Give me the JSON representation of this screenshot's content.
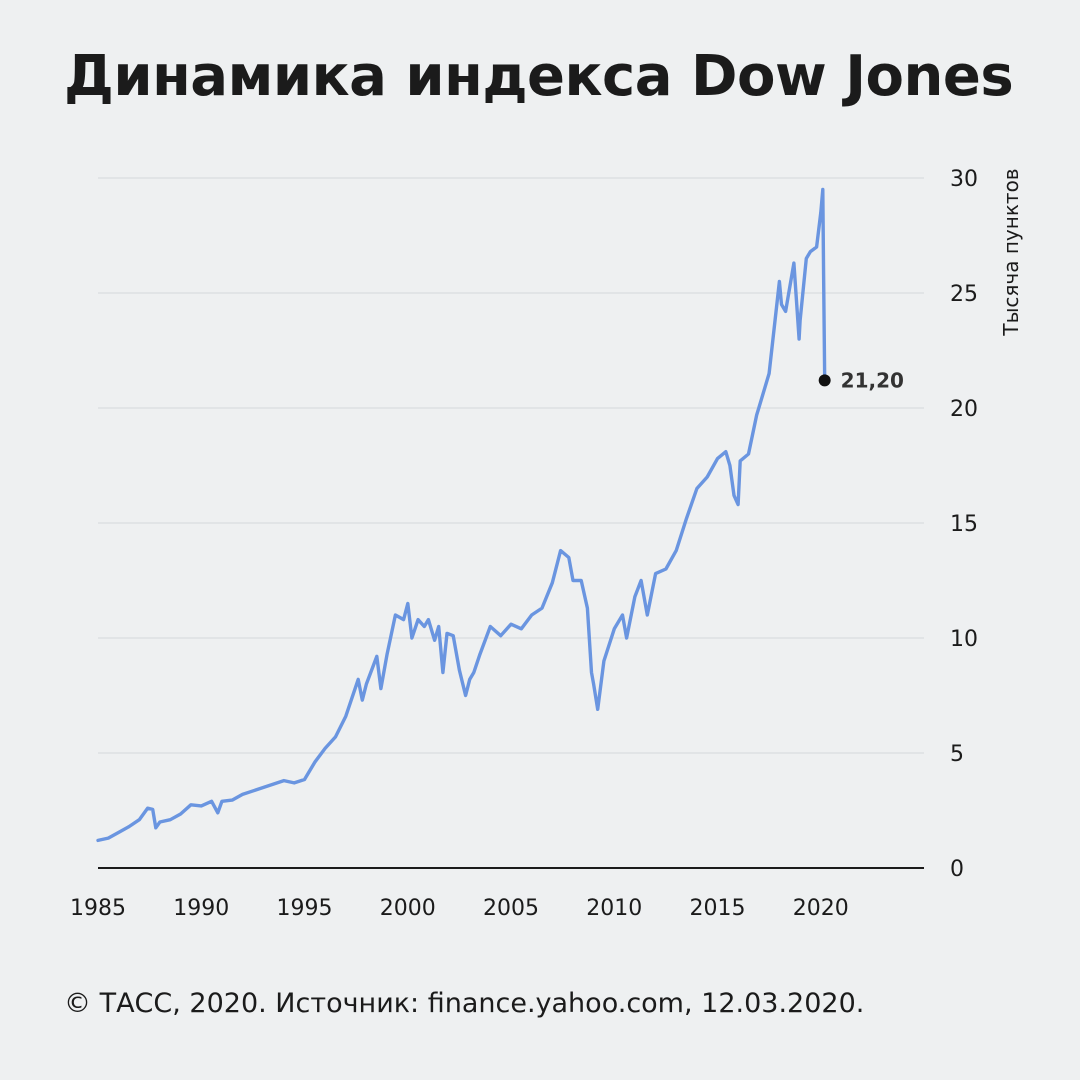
{
  "title": "Динамика индекса Dow Jones",
  "footer": "© ТАСС, 2020. Источник: finance.yahoo.com, 12.03.2020.",
  "colors": {
    "line": "#6a95e0",
    "grid": "#d4d7da",
    "axis": "#1b1b1b",
    "background": "#eef0f1"
  },
  "chart_data": {
    "type": "line",
    "title": "Динамика индекса Dow Jones",
    "xlabel": "",
    "ylabel": "Тысяча пунктов",
    "xlim": [
      1985,
      2025
    ],
    "ylim": [
      0,
      30
    ],
    "x_ticks": [
      "1985",
      "1990",
      "1995",
      "2000",
      "2005",
      "2010",
      "2015",
      "2020"
    ],
    "y_ticks": [
      "0",
      "5",
      "10",
      "15",
      "20",
      "25",
      "30"
    ],
    "y_axis_side": "right",
    "grid": true,
    "last_value_label": "21,20",
    "last_value": 21.2,
    "series": [
      {
        "x": [
          1985.0,
          1985.5,
          1986.0,
          1986.5,
          1987.0,
          1987.4,
          1987.65,
          1987.8,
          1988.0,
          1988.5,
          1989.0,
          1989.5,
          1990.0,
          1990.5,
          1990.8,
          1991.0,
          1991.5,
          1992.0,
          1993.0,
          1994.0,
          1994.5,
          1995.0,
          1995.5,
          1996.0,
          1996.5,
          1997.0,
          1997.6,
          1997.8,
          1998.0,
          1998.5,
          1998.7,
          1999.0,
          1999.4,
          1999.8,
          2000.0,
          2000.2,
          2000.5,
          2000.8,
          2001.0,
          2001.3,
          2001.5,
          2001.7,
          2001.9,
          2002.2,
          2002.5,
          2002.8,
          2003.0,
          2003.2,
          2003.5,
          2004.0,
          2004.5,
          2005.0,
          2005.5,
          2006.0,
          2006.5,
          2007.0,
          2007.4,
          2007.8,
          2008.0,
          2008.4,
          2008.7,
          2008.9,
          2009.0,
          2009.2,
          2009.5,
          2010.0,
          2010.4,
          2010.6,
          2011.0,
          2011.3,
          2011.6,
          2012.0,
          2012.5,
          2013.0,
          2013.5,
          2014.0,
          2014.5,
          2015.0,
          2015.4,
          2015.6,
          2015.8,
          2016.0,
          2016.1,
          2016.5,
          2016.9,
          2017.0,
          2017.5,
          2018.0,
          2018.1,
          2018.3,
          2018.7,
          2018.95,
          2019.0,
          2019.3,
          2019.5,
          2019.8,
          2020.0,
          2020.1,
          2020.14,
          2020.19
        ],
        "values": [
          1.2,
          1.3,
          1.55,
          1.8,
          2.1,
          2.6,
          2.55,
          1.75,
          2.0,
          2.1,
          2.35,
          2.75,
          2.7,
          2.9,
          2.4,
          2.9,
          2.95,
          3.2,
          3.5,
          3.8,
          3.7,
          3.85,
          4.6,
          5.2,
          5.7,
          6.6,
          8.2,
          7.3,
          8.0,
          9.2,
          7.8,
          9.3,
          11.0,
          10.8,
          11.5,
          10.0,
          10.8,
          10.5,
          10.8,
          9.9,
          10.5,
          8.5,
          10.2,
          10.1,
          8.6,
          7.5,
          8.2,
          8.5,
          9.3,
          10.5,
          10.1,
          10.6,
          10.4,
          11.0,
          11.3,
          12.4,
          13.8,
          13.5,
          12.5,
          12.5,
          11.3,
          8.5,
          8.0,
          6.9,
          9.0,
          10.4,
          11.0,
          10.0,
          11.8,
          12.5,
          11.0,
          12.8,
          13.0,
          13.8,
          15.2,
          16.5,
          17.0,
          17.8,
          18.1,
          17.5,
          16.2,
          15.8,
          17.7,
          18.0,
          19.7,
          20.0,
          21.5,
          25.5,
          24.5,
          24.2,
          26.3,
          23.0,
          23.8,
          26.5,
          26.8,
          27.0,
          28.5,
          29.5,
          25.8,
          21.2
        ]
      }
    ]
  }
}
